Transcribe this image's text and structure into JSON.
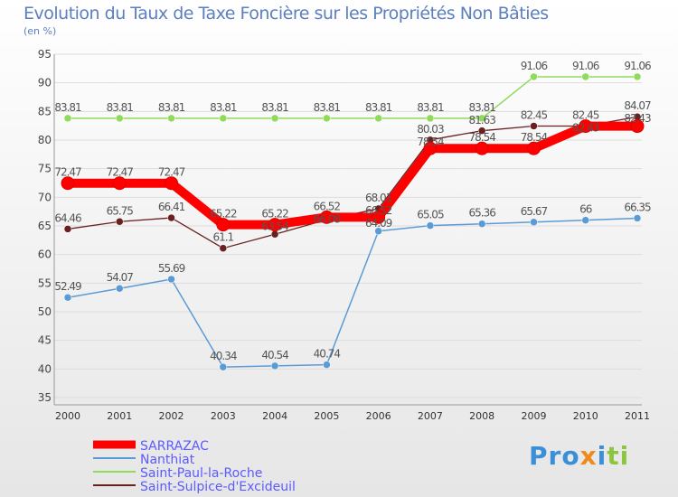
{
  "chart_data": {
    "type": "line",
    "title": "Evolution du Taux de Taxe Foncière sur les Propriétés Non Bâties",
    "ylabel": "(en %)",
    "ylim": [
      35,
      95
    ],
    "yticks": [
      35,
      40,
      45,
      50,
      55,
      60,
      65,
      70,
      75,
      80,
      85,
      90,
      95
    ],
    "x": [
      "2000",
      "2001",
      "2002",
      "2003",
      "2004",
      "2005",
      "2006",
      "2007",
      "2008",
      "2009",
      "2010",
      "2011"
    ],
    "legend_position": "bottom-left",
    "series": [
      {
        "name": "SARRAZAC",
        "color": "#ff0000",
        "values": [
          72.47,
          72.47,
          72.47,
          65.22,
          65.22,
          66.52,
          66.52,
          78.54,
          78.54,
          78.54,
          82.43,
          82.43
        ]
      },
      {
        "name": "Nanthiat",
        "color": "#5b9bd5",
        "values": [
          52.49,
          54.07,
          55.69,
          40.34,
          40.54,
          40.74,
          64.09,
          65.05,
          65.36,
          65.67,
          66,
          66.35
        ]
      },
      {
        "name": "Saint-Paul-la-Roche",
        "color": "#8fdb5a",
        "values": [
          83.81,
          83.81,
          83.81,
          83.81,
          83.81,
          83.81,
          83.81,
          83.81,
          83.81,
          91.06,
          91.06,
          91.06
        ]
      },
      {
        "name": "Saint-Sulpice-d'Excideuil",
        "color": "#6b2020",
        "values": [
          64.46,
          65.75,
          66.41,
          61.1,
          63.54,
          66.08,
          68.01,
          80.03,
          81.63,
          82.45,
          82.45,
          84.07
        ]
      }
    ]
  },
  "logo": "Proxiti"
}
